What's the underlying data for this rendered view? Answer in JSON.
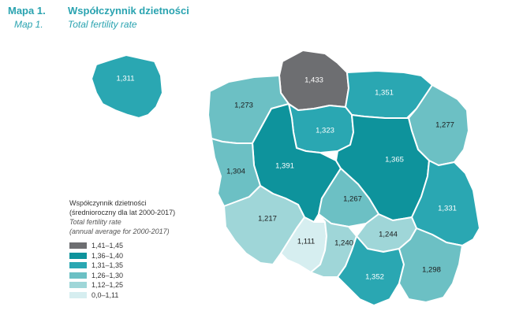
{
  "header": {
    "map_number": "Mapa 1.",
    "map_number_en": "Map 1.",
    "title": "Współczynnik dzietności",
    "title_en": "Total fertility rate"
  },
  "legend": {
    "title": "Współczynnik dzietności",
    "subtitle": "(średnioroczny dla lat 2000-2017)",
    "title_en": "Total fertility rate",
    "subtitle_en": "(annual average for 2000-2017)",
    "classes": [
      {
        "label": "1,41–1,45",
        "color": "#6d6e71"
      },
      {
        "label": "1,36–1,40",
        "color": "#0e939c"
      },
      {
        "label": "1,31–1,35",
        "color": "#2aa7b2"
      },
      {
        "label": "1,26–1,30",
        "color": "#6cc0c4"
      },
      {
        "label": "1,12–1,25",
        "color": "#9fd6d8"
      },
      {
        "label": "0,0–1,11",
        "color": "#d6eef0"
      }
    ]
  },
  "national": {
    "value": "1,311",
    "color": "#2aa7b2"
  },
  "regions": [
    {
      "id": "pomorskie",
      "value": "1,433",
      "color": "#6d6e71",
      "label_color": "#ffffff"
    },
    {
      "id": "warminsko-mazurskie",
      "value": "1,351",
      "color": "#2aa7b2",
      "label_color": "#ffffff"
    },
    {
      "id": "zachodniopomorskie",
      "value": "1,273",
      "color": "#6cc0c4",
      "label_color": "#1a1a1a"
    },
    {
      "id": "kujawsko-pomorskie",
      "value": "1,323",
      "color": "#2aa7b2",
      "label_color": "#ffffff"
    },
    {
      "id": "podlaskie",
      "value": "1,277",
      "color": "#6cc0c4",
      "label_color": "#1a1a1a"
    },
    {
      "id": "wielkopolskie",
      "value": "1,391",
      "color": "#0e939c",
      "label_color": "#ffffff"
    },
    {
      "id": "mazowieckie",
      "value": "1,365",
      "color": "#0e939c",
      "label_color": "#ffffff"
    },
    {
      "id": "lubuskie",
      "value": "1,304",
      "color": "#6cc0c4",
      "label_color": "#1a1a1a"
    },
    {
      "id": "lodzkie",
      "value": "1,267",
      "color": "#6cc0c4",
      "label_color": "#1a1a1a"
    },
    {
      "id": "lubelskie",
      "value": "1,331",
      "color": "#2aa7b2",
      "label_color": "#ffffff"
    },
    {
      "id": "dolnoslaskie",
      "value": "1,217",
      "color": "#9fd6d8",
      "label_color": "#1a1a1a"
    },
    {
      "id": "opolskie",
      "value": "1,111",
      "color": "#d6eef0",
      "label_color": "#1a1a1a"
    },
    {
      "id": "slaskie",
      "value": "1,240",
      "color": "#9fd6d8",
      "label_color": "#1a1a1a"
    },
    {
      "id": "swietokrzyskie",
      "value": "1,244",
      "color": "#9fd6d8",
      "label_color": "#1a1a1a"
    },
    {
      "id": "malopolskie",
      "value": "1,352",
      "color": "#2aa7b2",
      "label_color": "#ffffff"
    },
    {
      "id": "podkarpackie",
      "value": "1,298",
      "color": "#6cc0c4",
      "label_color": "#1a1a1a"
    }
  ]
}
